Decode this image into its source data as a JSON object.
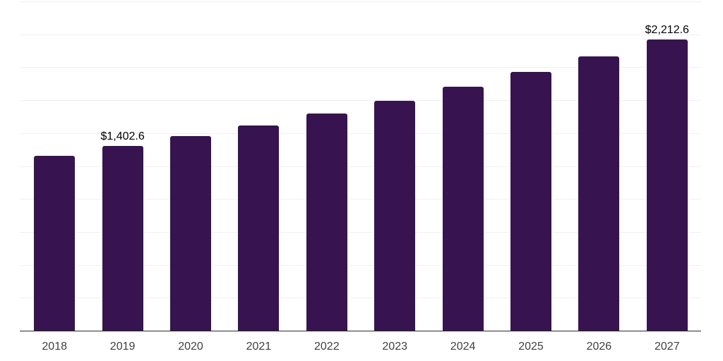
{
  "chart_data": {
    "type": "bar",
    "title": "",
    "xlabel": "",
    "ylabel": "",
    "categories": [
      "2018",
      "2019",
      "2020",
      "2021",
      "2022",
      "2023",
      "2024",
      "2025",
      "2026",
      "2027"
    ],
    "values": [
      1330,
      1402.6,
      1476,
      1556,
      1648,
      1746,
      1853,
      1965,
      2085,
      2212.6
    ],
    "data_labels": [
      "",
      "$1,402.6",
      "",
      "",
      "",
      "",
      "",
      "",
      "",
      "$2,212.6"
    ],
    "ylim": [
      0,
      2500
    ],
    "grid_step": 250,
    "grid": "horizontal-only",
    "legend": "none",
    "y_axis_tick_labels": "none",
    "colors": {
      "bar": "#371450",
      "gridline": "#f0f0f0",
      "axis": "#2b2b2b",
      "data_label": "#000000",
      "tick_label": "#404040",
      "background": "#ffffff"
    }
  }
}
